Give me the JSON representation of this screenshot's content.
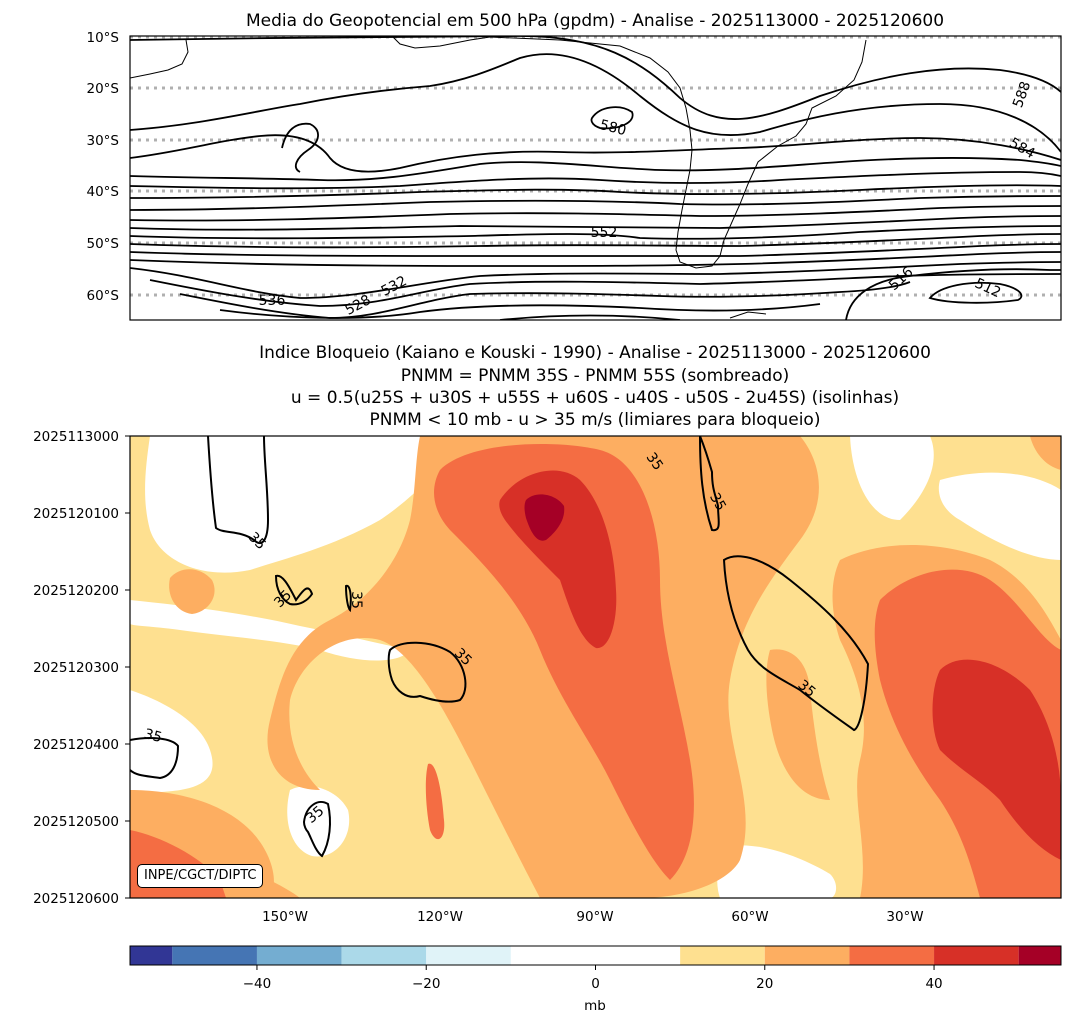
{
  "chart_data": [
    {
      "type": "contour",
      "title": "Media do Geopotencial em 500 hPa (gpdm) - Analise - 2025113000 - 2025120600",
      "y_ticks": [
        "10°S",
        "20°S",
        "30°S",
        "40°S",
        "50°S",
        "60°S"
      ],
      "lat_range": [
        -10,
        -65
      ],
      "contour_levels": [
        512,
        516,
        520,
        524,
        528,
        532,
        536,
        540,
        544,
        548,
        552,
        556,
        560,
        564,
        568,
        572,
        576,
        580,
        584,
        588
      ],
      "contour_labels": [
        "580",
        "588",
        "584",
        "552",
        "536",
        "528",
        "532",
        "516",
        "512"
      ],
      "gridlines": "dotted latitude lines"
    },
    {
      "type": "heatmap",
      "title_lines": [
        "Indice Bloqueio (Kaiano e Kouski - 1990) - Analise - 2025113000 - 2025120600",
        "PNMM = PNMM 35S - PNMM 55S (sombreado)",
        "u = 0.5(u25S + u30S + u55S + u60S - u40S - u50S - 2u45S) (isolinhas)",
        "PNMM < 10 mb - u > 35 m/s (limiares para bloqueio)"
      ],
      "x_ticks": [
        "150°W",
        "120°W",
        "90°W",
        "60°W",
        "30°W"
      ],
      "y_ticks": [
        "2025113000",
        "2025120100",
        "2025120200",
        "2025120300",
        "2025120400",
        "2025120500",
        "2025120600"
      ],
      "contour_value": 35,
      "contour_labels": [
        "35",
        "35",
        "35",
        "35",
        "35",
        "35",
        "35",
        "35",
        "35",
        "35"
      ],
      "credit": "INPE/CGCT/DIPTC"
    },
    {
      "type": "colorbar",
      "label": "mb",
      "range": [
        -55,
        55
      ],
      "ticks": [
        "−40",
        "−20",
        "0",
        "20",
        "40"
      ],
      "bins": [
        {
          "from": -55,
          "to": -50,
          "color": "#313695"
        },
        {
          "from": -50,
          "to": -40,
          "color": "#4575b4"
        },
        {
          "from": -40,
          "to": -30,
          "color": "#74add1"
        },
        {
          "from": -30,
          "to": -20,
          "color": "#abd9e9"
        },
        {
          "from": -20,
          "to": -10,
          "color": "#e0f3f8"
        },
        {
          "from": -10,
          "to": 10,
          "color": "#ffffff"
        },
        {
          "from": 10,
          "to": 20,
          "color": "#fee090"
        },
        {
          "from": 20,
          "to": 30,
          "color": "#fdae61"
        },
        {
          "from": 30,
          "to": 40,
          "color": "#f46d43"
        },
        {
          "from": 40,
          "to": 50,
          "color": "#d73027"
        },
        {
          "from": 50,
          "to": 55,
          "color": "#a50026"
        }
      ]
    }
  ]
}
